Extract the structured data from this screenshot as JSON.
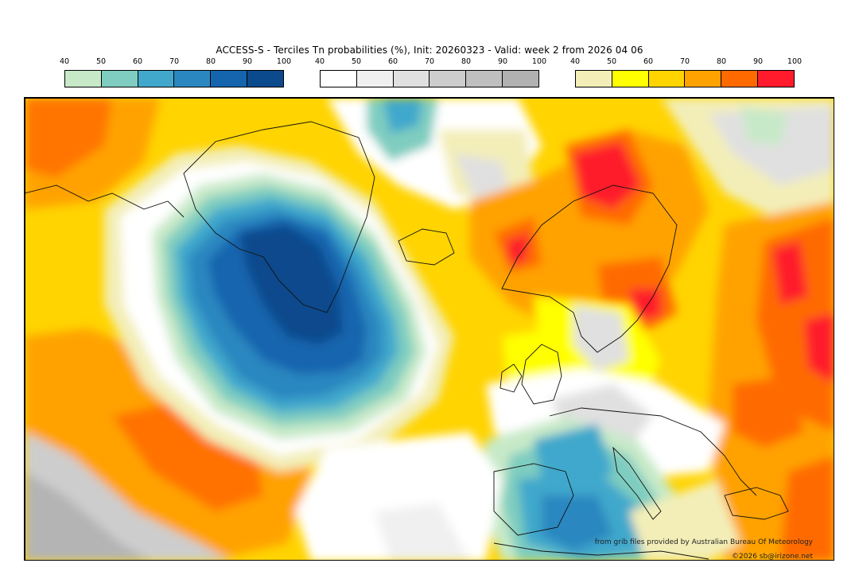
{
  "title": "ACCESS-S - Terciles Tn probabilities (%), Init: 20260323 - Valid: week 2 from 2026 04 06",
  "legends": [
    {
      "name": "lower-tercile-legend",
      "ticks": [
        "40",
        "50",
        "60",
        "70",
        "80",
        "90",
        "100"
      ],
      "colors": [
        "#c7e9c8",
        "#7fcdc0",
        "#41a8cc",
        "#2b87c0",
        "#1565ae",
        "#0b4a8c"
      ]
    },
    {
      "name": "middle-tercile-legend",
      "ticks": [
        "40",
        "50",
        "60",
        "70",
        "80",
        "90",
        "100"
      ],
      "colors": [
        "#ffffff",
        "#f0f0f0",
        "#e0e0e0",
        "#cdcdcd",
        "#bfbfbf",
        "#b1b1b1"
      ]
    },
    {
      "name": "upper-tercile-legend",
      "ticks": [
        "40",
        "50",
        "60",
        "70",
        "80",
        "90",
        "100"
      ],
      "colors": [
        "#f3eeb8",
        "#ffff00",
        "#ffd400",
        "#ffa200",
        "#ff6a00",
        "#ff1b2c"
      ]
    }
  ],
  "credits": {
    "source": "from grib files provided by Australian Bureau Of Meteorology",
    "copyright": "©2026 sb@irizone.net"
  }
}
